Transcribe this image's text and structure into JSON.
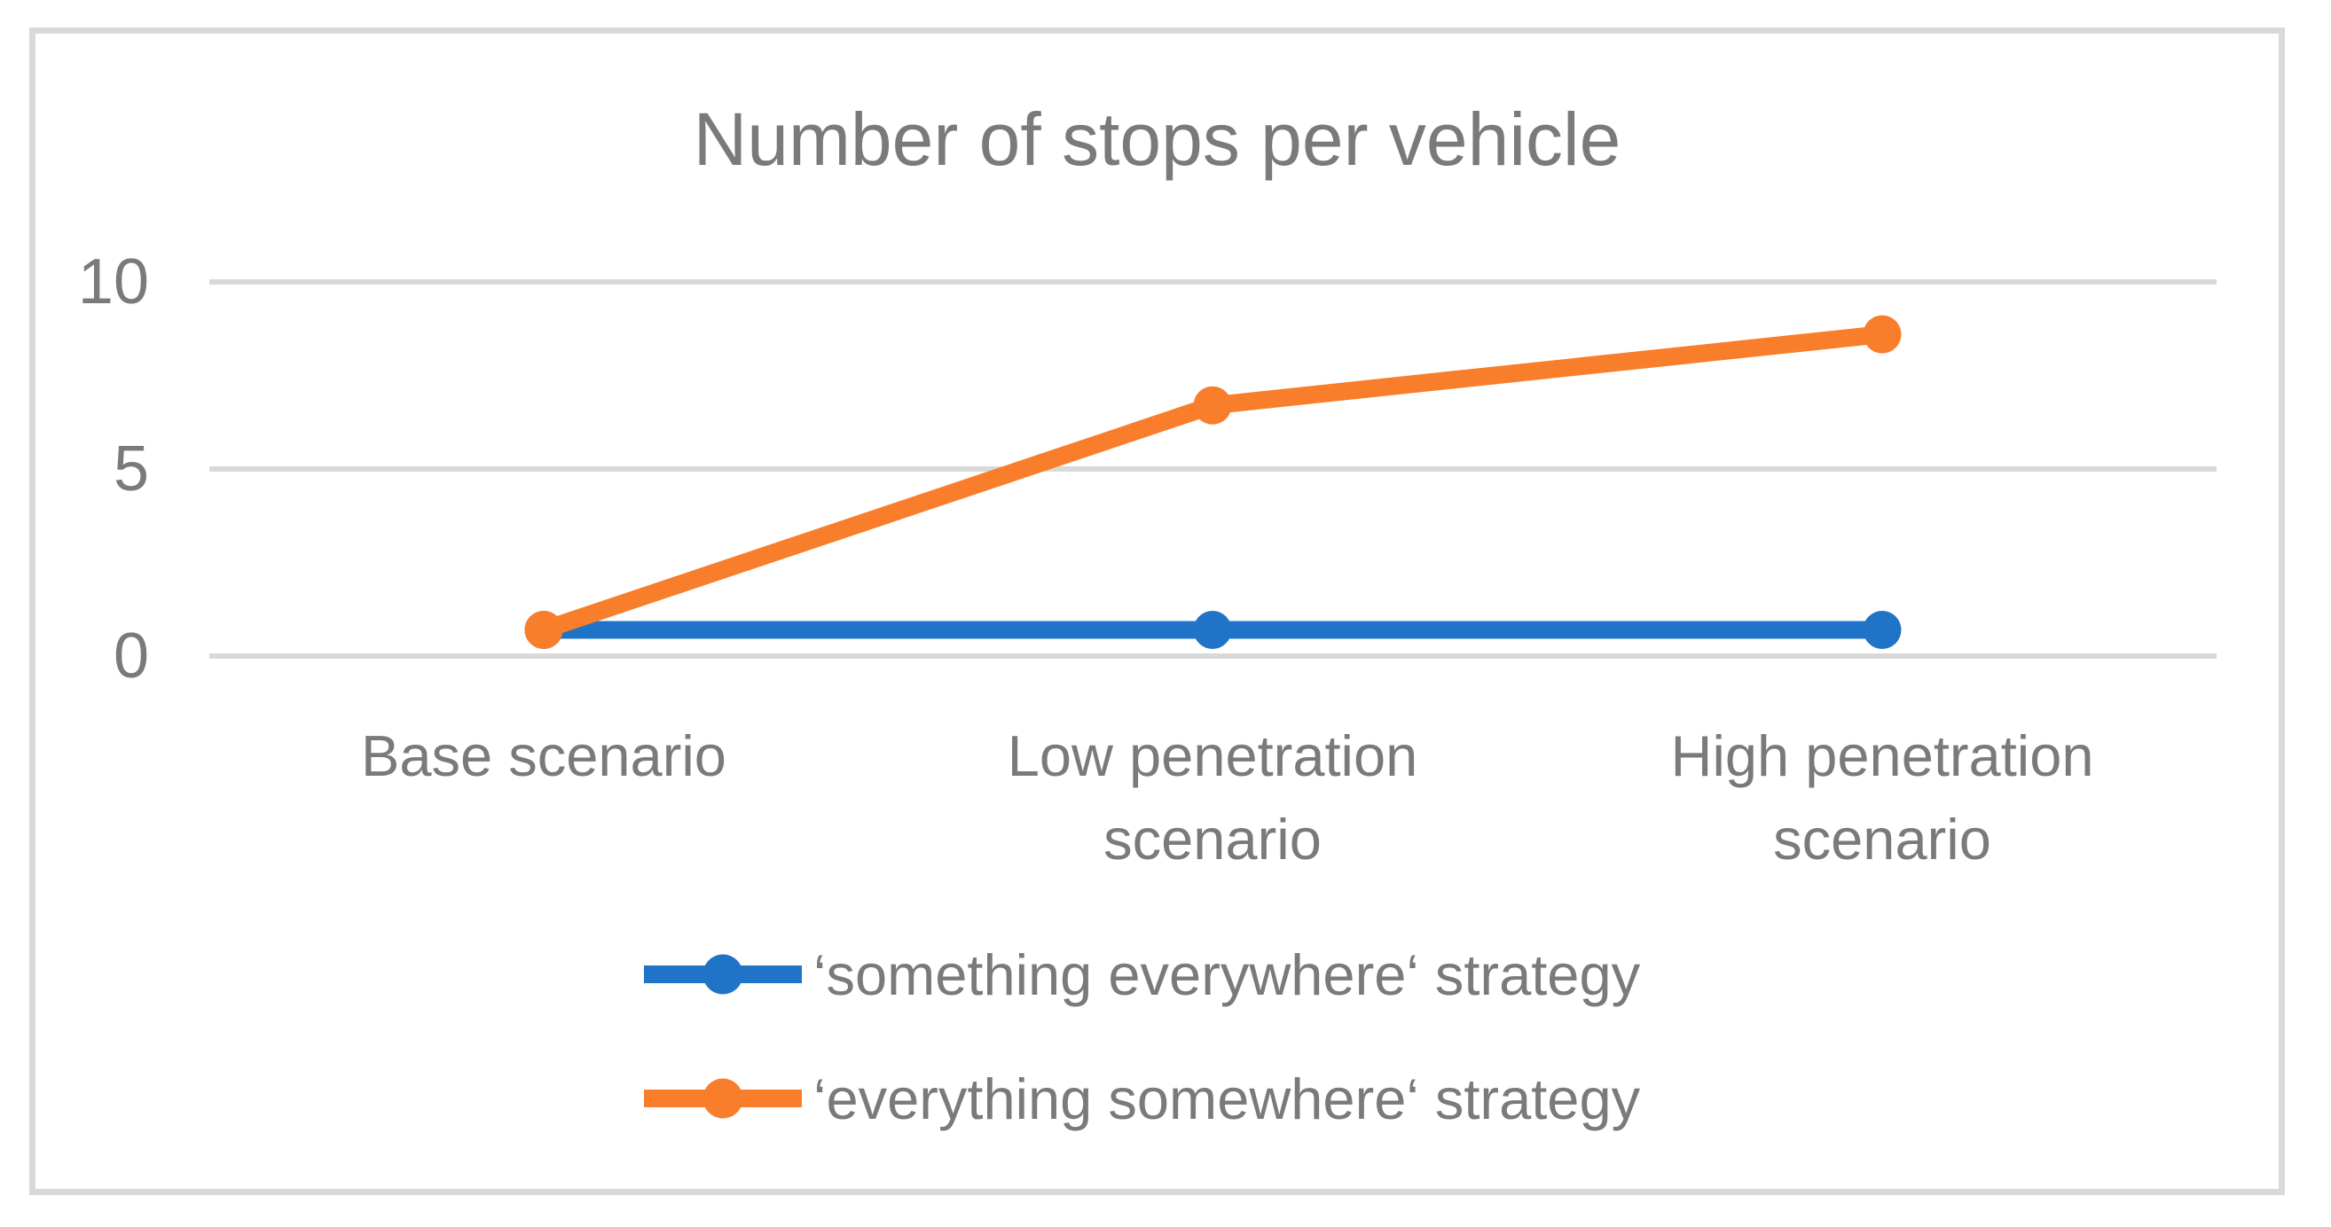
{
  "chart_data": {
    "type": "line",
    "title": "Number of stops per vehicle",
    "categories": [
      "Base scenario",
      "Low penetration scenario",
      "High penetration scenario"
    ],
    "series": [
      {
        "name": "‘something everywhere‘ strategy",
        "values": [
          0.7,
          0.7,
          0.7
        ],
        "color": "#1F74C8"
      },
      {
        "name": "‘everything somewhere‘ strategy",
        "values": [
          0.7,
          6.7,
          8.6
        ],
        "color": "#F97E2B"
      }
    ],
    "y_axis": {
      "ticks": [
        0,
        5,
        10
      ],
      "tick_labels": [
        "0",
        "5",
        "10"
      ],
      "ylim": [
        0,
        12.5
      ]
    },
    "xlabel": "",
    "ylabel": "",
    "grid": true,
    "gridlines_at": [
      0,
      5,
      10
    ],
    "legend_position": "bottom",
    "marker": "circle",
    "colors": {
      "grid": "#D9D9D9",
      "frame": "#D9D9D9",
      "text": "#7A7A7A",
      "background": "#FFFFFF"
    }
  }
}
